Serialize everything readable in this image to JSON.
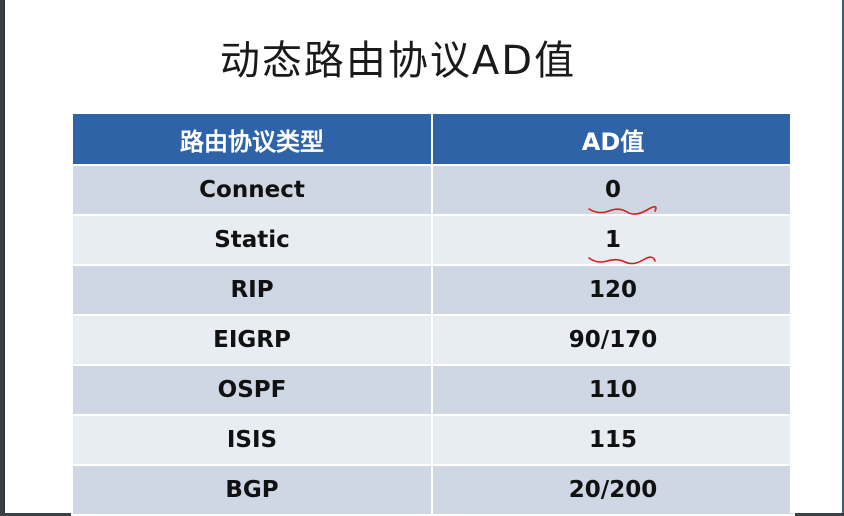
{
  "title": "动态路由协议AD值",
  "table": {
    "headers": [
      "路由协议类型",
      "AD值"
    ],
    "rows": [
      {
        "protocol": "Connect",
        "ad": "0"
      },
      {
        "protocol": "Static",
        "ad": "1"
      },
      {
        "protocol": "RIP",
        "ad": "120"
      },
      {
        "protocol": "EIGRP",
        "ad": "90/170"
      },
      {
        "protocol": "OSPF",
        "ad": "110"
      },
      {
        "protocol": "ISIS",
        "ad": "115"
      },
      {
        "protocol": "BGP",
        "ad": "20/200"
      }
    ]
  },
  "colors": {
    "header_bg": "#2f63a8",
    "row_odd": "#cfd6e4",
    "row_even": "#e8ecf3",
    "annotation": "#d42020"
  }
}
